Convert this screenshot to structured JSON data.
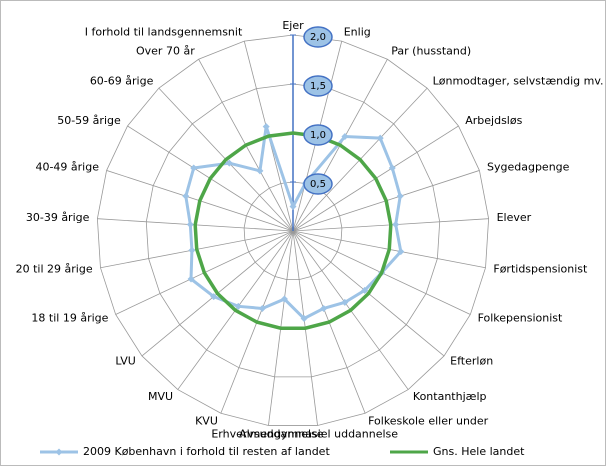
{
  "chart_data": {
    "type": "radar",
    "categories": [
      "Ejer",
      "Enlig",
      "Par (husstand)",
      "Lønmodtager, selvstændig mv.",
      "Arbejdsløs",
      "Sygedagpenge",
      "Elever",
      "Førtidspensionist",
      "Folkepensionist",
      "Efterløn",
      "Kontanthjælp",
      "Folkeskole eller under",
      "Almengymnasiel uddannelse",
      "Erhvervsuddannelse",
      "KVU",
      "MVU",
      "LVU",
      "18 til 19 årige",
      "20 til 29 årige",
      "30-39 årige",
      "40-49 årige",
      "50-59 årige",
      "60-69 årige",
      "Over 70 år",
      "I forhold til landsgennemsnit"
    ],
    "series": [
      {
        "name": "2009 København i forhold til resten af landet",
        "color": "#9dc3e6",
        "values": [
          0.25,
          0.5,
          1.1,
          1.3,
          1.2,
          1.15,
          1.05,
          1.12,
          1.0,
          0.95,
          0.9,
          0.85,
          0.9,
          0.7,
          0.85,
          0.95,
          1.05,
          1.15,
          1.05,
          1.05,
          1.15,
          1.2,
          0.95,
          0.7,
          1.1
        ]
      },
      {
        "name": "Gns. Hele landet",
        "color": "#4ea648",
        "values": [
          1,
          1,
          1,
          1,
          1,
          1,
          1,
          1,
          1,
          1,
          1,
          1,
          1,
          1,
          1,
          1,
          1,
          1,
          1,
          1,
          1,
          1,
          1,
          1,
          1
        ]
      }
    ],
    "ylim": [
      0,
      2
    ],
    "yticks": [
      {
        "value": 0.5,
        "label": "0,5"
      },
      {
        "value": 1,
        "label": "1,0"
      },
      {
        "value": 1.5,
        "label": "1,5"
      },
      {
        "value": 2,
        "label": "2,0"
      }
    ],
    "grid": true,
    "legend": "bottom"
  }
}
